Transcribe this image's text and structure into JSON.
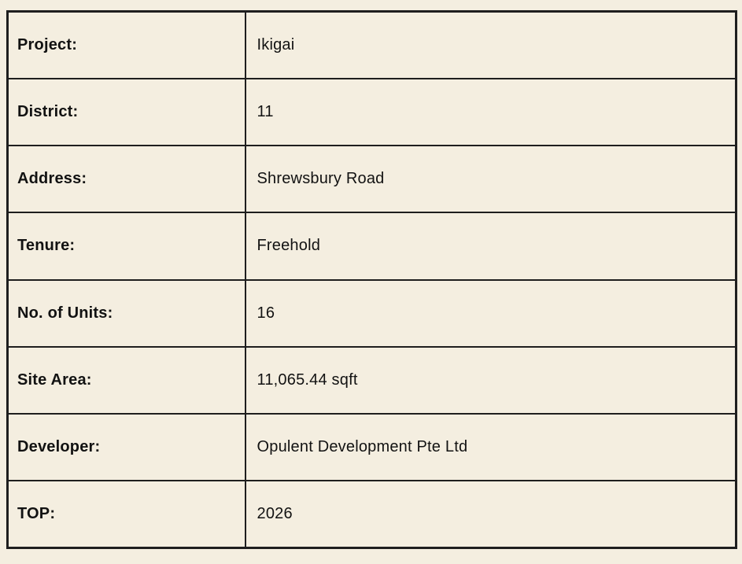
{
  "colors": {
    "background": "#f4eee0",
    "border": "#1e1e1e",
    "text": "#121212"
  },
  "table": {
    "rows": [
      {
        "label": "Project:",
        "value": "Ikigai"
      },
      {
        "label": "District:",
        "value": "11"
      },
      {
        "label": "Address:",
        "value": "Shrewsbury Road"
      },
      {
        "label": "Tenure:",
        "value": "Freehold"
      },
      {
        "label": "No. of Units:",
        "value": "16"
      },
      {
        "label": "Site Area:",
        "value": "11,065.44 sqft"
      },
      {
        "label": "Developer:",
        "value": "Opulent Development Pte Ltd"
      },
      {
        "label": "TOP:",
        "value": "2026"
      }
    ]
  }
}
